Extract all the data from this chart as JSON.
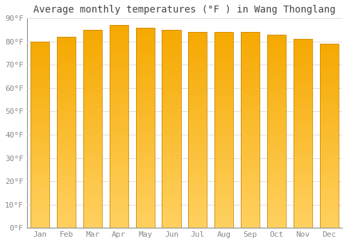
{
  "title": "Average monthly temperatures (°F ) in Wang Thonglang",
  "months": [
    "Jan",
    "Feb",
    "Mar",
    "Apr",
    "May",
    "Jun",
    "Jul",
    "Aug",
    "Sep",
    "Oct",
    "Nov",
    "Dec"
  ],
  "values": [
    80,
    82,
    85,
    87,
    86,
    85,
    84,
    84,
    84,
    83,
    81,
    79
  ],
  "ylim": [
    0,
    90
  ],
  "yticks": [
    0,
    10,
    20,
    30,
    40,
    50,
    60,
    70,
    80,
    90
  ],
  "bar_color_top": "#F5A800",
  "bar_color_bottom": "#FFD060",
  "bar_edge_color": "#CC8800",
  "background_color": "#ffffff",
  "grid_color": "#dddddd",
  "title_fontsize": 10,
  "tick_fontsize": 8,
  "font_family": "monospace",
  "bar_width": 0.72,
  "n_gradient_steps": 80
}
